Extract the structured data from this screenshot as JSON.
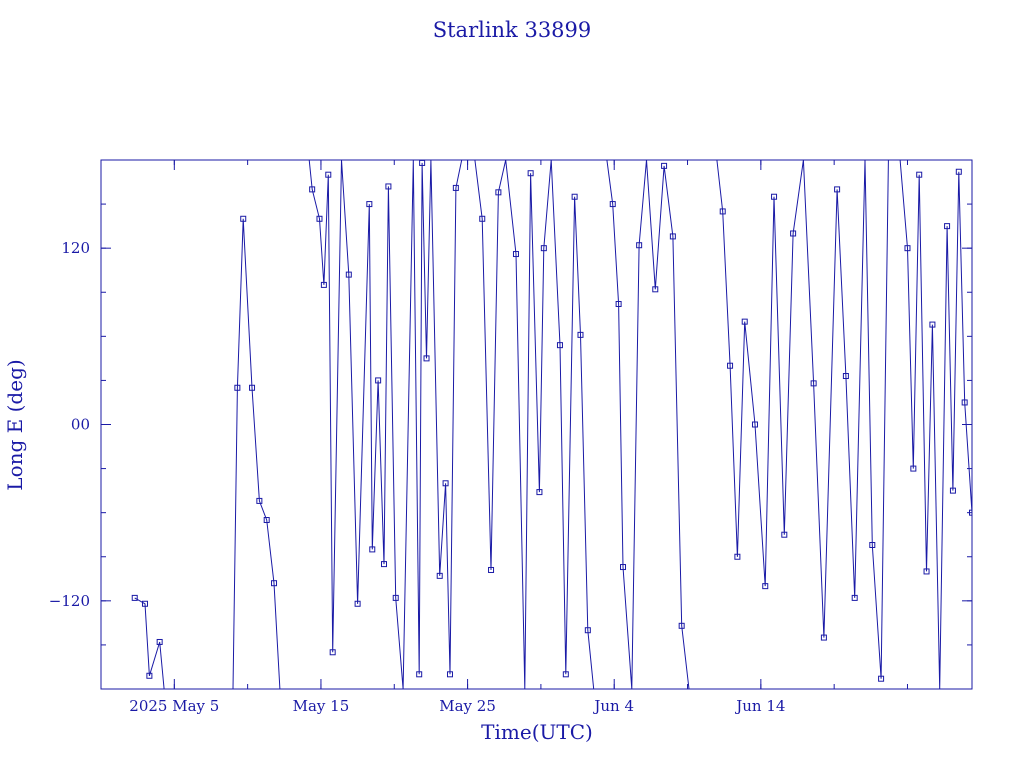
{
  "chart_data": {
    "type": "line",
    "title": "Starlink 33899",
    "xlabel": "Time(UTC)",
    "ylabel": "Long E (deg)",
    "x_tick_labels": [
      "2025 May  5",
      "May 15",
      "May 25",
      "Jun  4",
      "Jun 14"
    ],
    "x_tick_days": [
      5,
      15,
      25,
      35,
      45
    ],
    "y_tick_labels": [
      "−120",
      "00",
      "120"
    ],
    "y_tick_values": [
      -120,
      0,
      120
    ],
    "xlim": [
      0,
      59.4
    ],
    "ylim": [
      -180,
      180
    ],
    "grid": false,
    "color": "#1a1aa6",
    "series": [
      {
        "x": [
          2.3,
          3.0,
          3.3,
          4.0,
          4.3
        ],
        "y": [
          -118,
          -122,
          -171,
          -148,
          -180
        ]
      },
      {
        "x": [
          9.0,
          9.3,
          9.7,
          10.3,
          10.8,
          11.3,
          11.8,
          12.2
        ],
        "y": [
          -180,
          25,
          140,
          25,
          -52,
          -65,
          -108,
          -180
        ]
      },
      {
        "x": [
          14.2,
          14.4,
          14.9,
          15.2,
          15.5,
          15.8,
          16.4,
          16.9,
          17.5,
          18.3,
          18.5,
          18.9,
          19.3,
          19.6,
          20.1,
          20.6,
          21.3,
          21.7,
          21.9,
          22.2,
          22.5,
          23.1,
          23.5,
          23.8,
          24.2,
          24.6
        ],
        "y": [
          180,
          160,
          140,
          95,
          170,
          -155,
          180,
          102,
          -122,
          150,
          -85,
          30,
          -95,
          162,
          -118,
          -180,
          180,
          -170,
          178,
          45,
          180,
          -103,
          -40,
          -170,
          161,
          180
        ]
      },
      {
        "x": [
          25.5,
          26.0,
          26.6,
          27.1,
          27.6,
          28.3,
          28.9,
          29.3,
          29.9,
          30.2,
          30.7,
          31.3,
          31.7,
          32.3,
          32.7,
          33.2,
          33.6
        ],
        "y": [
          180,
          140,
          -99,
          158,
          180,
          116,
          -180,
          171,
          -46,
          120,
          180,
          54,
          -170,
          155,
          61,
          -140,
          -180
        ]
      },
      {
        "x": [
          34.5,
          34.9,
          35.3,
          35.6,
          36.2,
          36.7,
          37.2,
          37.8,
          38.4,
          39.0,
          39.6,
          40.1
        ],
        "y": [
          180,
          150,
          82,
          -97,
          -180,
          122,
          180,
          92,
          176,
          128,
          -137,
          -180
        ]
      },
      {
        "x": [
          42.0,
          42.4,
          42.9,
          43.4,
          43.9,
          44.6,
          45.3,
          45.9,
          46.6,
          47.2,
          47.9,
          48.6,
          49.3,
          50.2,
          50.8,
          51.4,
          52.1,
          52.6,
          53.2,
          53.7
        ],
        "y": [
          180,
          145,
          40,
          -90,
          70,
          0,
          -110,
          155,
          -75,
          130,
          180,
          28,
          -145,
          160,
          33,
          -118,
          180,
          -82,
          -173,
          180
        ]
      },
      {
        "x": [
          54.5,
          55.0,
          55.4,
          55.8,
          56.3,
          56.7,
          57.2,
          57.7,
          58.1,
          58.5,
          58.9,
          59.4
        ],
        "y": [
          180,
          120,
          -30,
          170,
          -100,
          68,
          -180,
          135,
          -45,
          172,
          15,
          -60
        ]
      }
    ]
  }
}
